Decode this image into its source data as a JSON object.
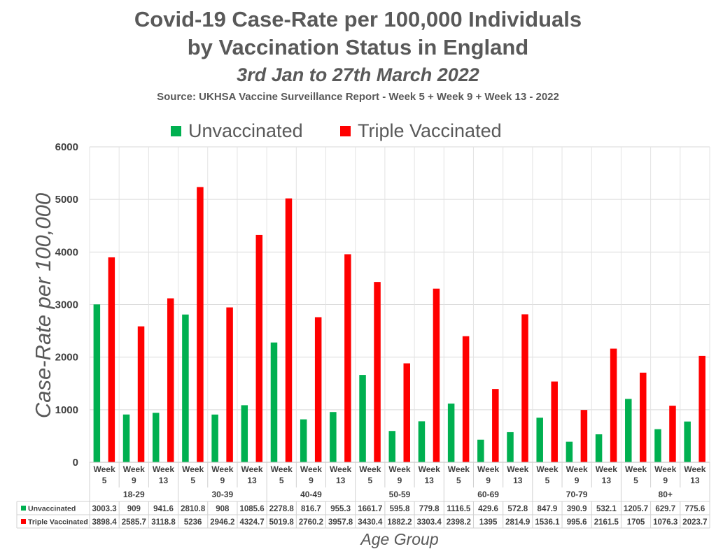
{
  "chart_data": {
    "type": "bar",
    "title": "Covid-19 Case-Rate per 100,000 Individuals",
    "title_line2": "by Vaccination Status in England",
    "subtitle": "3rd Jan to 27th March 2022",
    "source": "Source: UKHSA Vaccine Surveillance Report - Week 5 + Week 9 + Week 13 - 2022",
    "ylabel": "Case-Rate per 100,000",
    "xlabel": "Age Group",
    "ylim": [
      0,
      6000
    ],
    "yticks": [
      0,
      1000,
      2000,
      3000,
      4000,
      5000,
      6000
    ],
    "grid": true,
    "legend_position": "top",
    "week_word": "Week",
    "groups": [
      {
        "label": "18-29",
        "weeks": [
          "5",
          "9",
          "13"
        ]
      },
      {
        "label": "30-39",
        "weeks": [
          "5",
          "9",
          "13"
        ]
      },
      {
        "label": "40-49",
        "weeks": [
          "5",
          "9",
          "13"
        ]
      },
      {
        "label": "50-59",
        "weeks": [
          "5",
          "9",
          "13"
        ]
      },
      {
        "label": "60-69",
        "weeks": [
          "5",
          "9",
          "13"
        ]
      },
      {
        "label": "70-79",
        "weeks": [
          "5",
          "9",
          "13"
        ]
      },
      {
        "label": "80+",
        "weeks": [
          "5",
          "9",
          "13"
        ]
      }
    ],
    "series": [
      {
        "name": "Unvaccinated",
        "color": "#00b050",
        "values": [
          3003.3,
          909,
          941.6,
          2810.8,
          908,
          1085.6,
          2278.8,
          816.7,
          955.3,
          1661.7,
          595.8,
          779.8,
          1116.5,
          429.6,
          572.8,
          847.9,
          390.9,
          532.1,
          1205.7,
          629.7,
          775.6
        ]
      },
      {
        "name": "Triple Vaccinated",
        "color": "#ff0000",
        "values": [
          3898.4,
          2585.7,
          3118.8,
          5236,
          2946.2,
          4324.7,
          5019.8,
          2760.2,
          3957.8,
          3430.4,
          1882.2,
          3303.4,
          2398.2,
          1395,
          2814.9,
          1536.1,
          995.6,
          2161.5,
          1705,
          1076.3,
          2023.7
        ]
      }
    ]
  }
}
